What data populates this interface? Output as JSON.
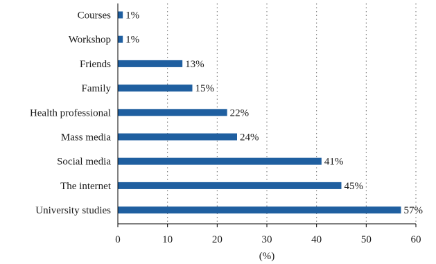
{
  "chart_data": {
    "type": "bar",
    "orientation": "horizontal",
    "categories": [
      "Courses",
      "Workshop",
      "Friends",
      "Family",
      "Health professional",
      "Mass media",
      "Social media",
      "The internet",
      "University studies"
    ],
    "values": [
      1,
      1,
      13,
      15,
      22,
      24,
      41,
      45,
      57
    ],
    "value_labels": [
      "1%",
      "1%",
      "13%",
      "15%",
      "22%",
      "24%",
      "41%",
      "45%",
      "57%"
    ],
    "xlabel": "(%)",
    "xlim": [
      0,
      60
    ],
    "xticks": [
      0,
      10,
      20,
      30,
      40,
      50,
      60
    ],
    "grid": "vertical dotted",
    "bar_color": "#1f5fa0"
  }
}
